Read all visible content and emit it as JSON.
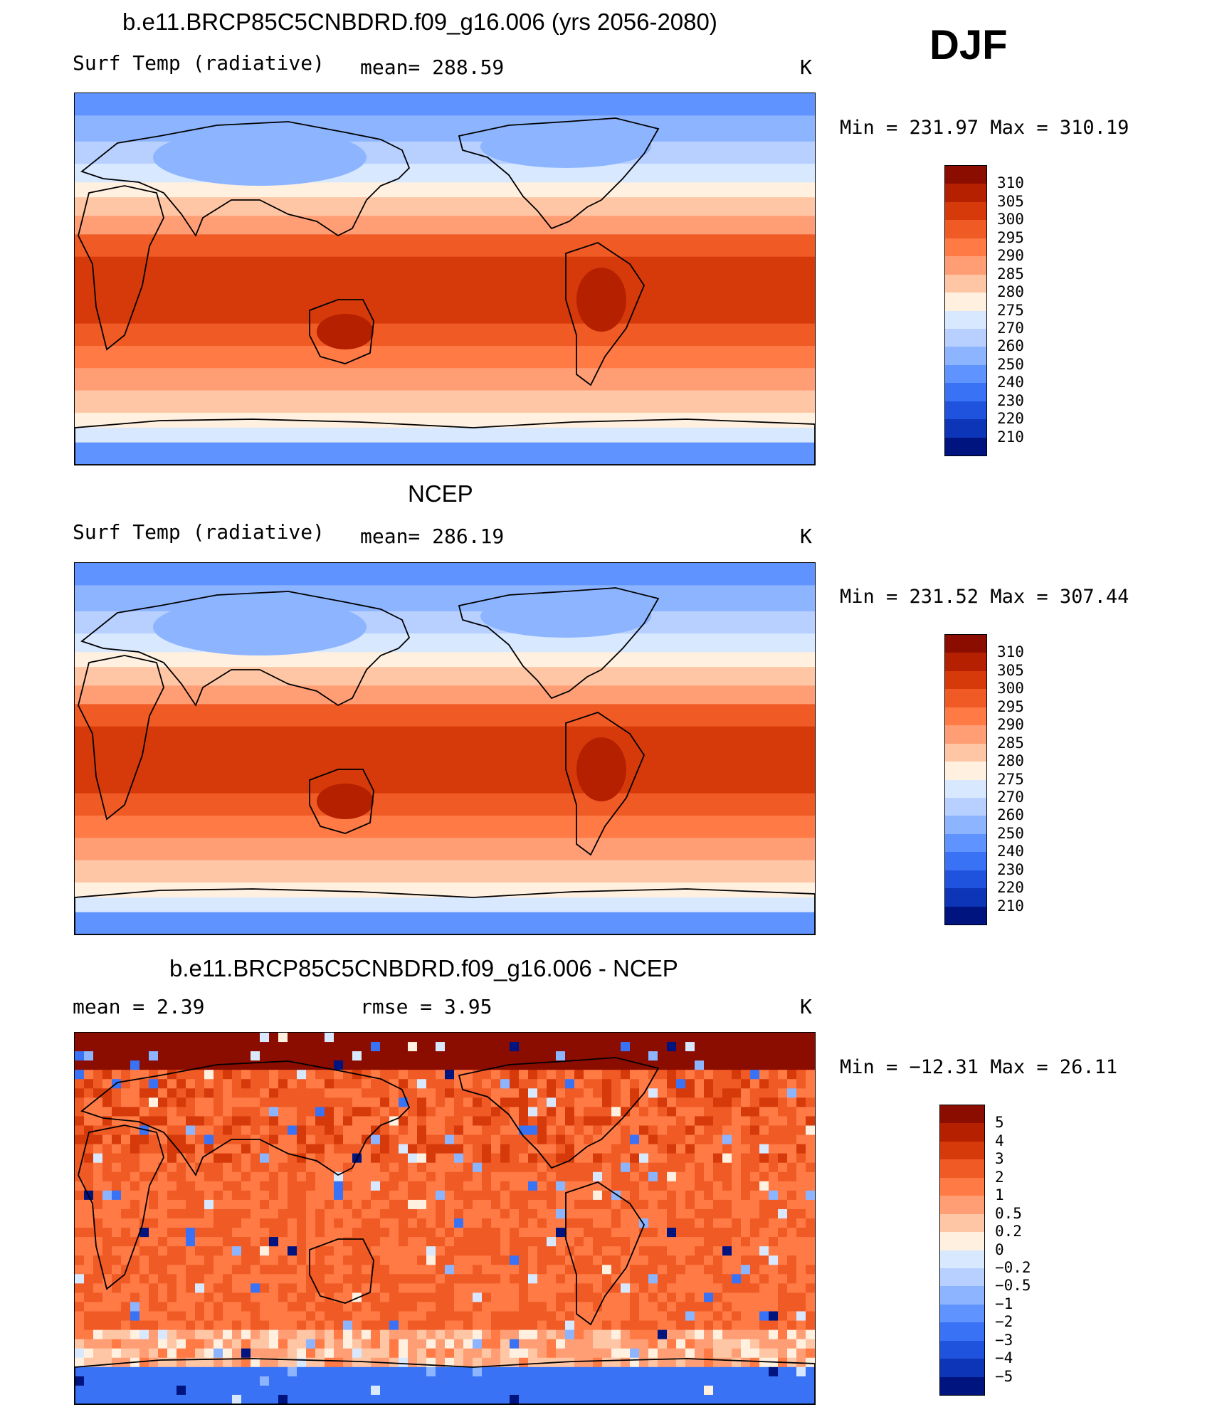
{
  "header": {
    "season": "DJF"
  },
  "panels": [
    {
      "title": "b.e11.BRCP85C5CNBDRD.f09_g16.006 (yrs 2056-2080)",
      "left_label": "Surf Temp (radiative)",
      "center_label": "mean=  288.59",
      "units": "K",
      "minmax": "Min = 231.97 Max = 310.19",
      "colorbar": {
        "labels": [
          "310",
          "305",
          "300",
          "295",
          "290",
          "285",
          "280",
          "275",
          "270",
          "260",
          "250",
          "240",
          "230",
          "220",
          "210"
        ],
        "colors": [
          "#8b0d00",
          "#b42000",
          "#d63a0a",
          "#f05a24",
          "#ff7a45",
          "#ff9e75",
          "#ffc6a5",
          "#fff0e0",
          "#d8e8ff",
          "#b8d0ff",
          "#8cb4ff",
          "#5f93ff",
          "#3a72f5",
          "#1f52dd",
          "#0d35b8",
          "#001480"
        ]
      },
      "map_scheme": "abs"
    },
    {
      "title": "NCEP",
      "left_label": "Surf Temp (radiative)",
      "center_label": "mean=  286.19",
      "units": "K",
      "minmax": "Min = 231.52 Max = 307.44",
      "colorbar": {
        "labels": [
          "310",
          "305",
          "300",
          "295",
          "290",
          "285",
          "280",
          "275",
          "270",
          "260",
          "250",
          "240",
          "230",
          "220",
          "210"
        ],
        "colors": [
          "#8b0d00",
          "#b42000",
          "#d63a0a",
          "#f05a24",
          "#ff7a45",
          "#ff9e75",
          "#ffc6a5",
          "#fff0e0",
          "#d8e8ff",
          "#b8d0ff",
          "#8cb4ff",
          "#5f93ff",
          "#3a72f5",
          "#1f52dd",
          "#0d35b8",
          "#001480"
        ]
      },
      "map_scheme": "abs"
    },
    {
      "title": "b.e11.BRCP85C5CNBDRD.f09_g16.006 - NCEP",
      "left_label": "mean =     2.39",
      "center_label": "rmse =     3.95",
      "units": "K",
      "minmax": "Min = −12.31 Max =   26.11",
      "colorbar": {
        "labels": [
          "5",
          "4",
          "3",
          "2",
          "1",
          "0.5",
          "0.2",
          "0",
          "−0.2",
          "−0.5",
          "−1",
          "−2",
          "−3",
          "−4",
          "−5"
        ],
        "colors": [
          "#8b0d00",
          "#b42000",
          "#d63a0a",
          "#f05a24",
          "#ff7a45",
          "#ff9e75",
          "#ffc6a5",
          "#fff0e0",
          "#d8e8ff",
          "#b8d0ff",
          "#8cb4ff",
          "#5f93ff",
          "#3a72f5",
          "#1f52dd",
          "#0d35b8",
          "#001480"
        ]
      },
      "map_scheme": "diff"
    }
  ]
}
